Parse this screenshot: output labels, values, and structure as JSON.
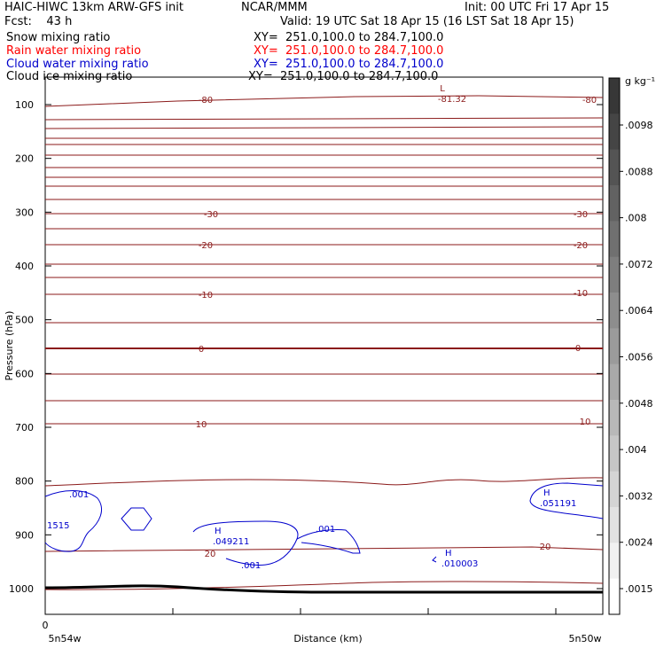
{
  "header": {
    "title": "HAIC-HIWC 13km ARW-GFS init",
    "org": "NCAR/MMM",
    "init": "Init: 00 UTC Fri 17 Apr 15",
    "fcst": "Fcst:    43 h",
    "valid": "Valid: 19 UTC Sat 18 Apr 15 (16 LST Sat 18 Apr 15)"
  },
  "fields": [
    {
      "label": "Snow mixing ratio",
      "xy": "XY=  251.0,100.0 to 284.7,100.0",
      "color": "#000000"
    },
    {
      "label": "Rain water mixing ratio",
      "xy": "XY=  251.0,100.0 to 284.7,100.0",
      "color": "#ff0000"
    },
    {
      "label": "Cloud water mixing ratio",
      "xy": "XY=  251.0,100.0 to 284.7,100.0",
      "color": "#0000cc"
    },
    {
      "label": "Cloud ice mixing ratio",
      "xy": "XY=  251.0,100.0 to 284.7,100.0",
      "color": "#000000"
    }
  ],
  "chart_data": {
    "type": "cross-section",
    "ylabel": "Pressure (hPa)",
    "xlabel": "Distance (km)",
    "yticks": [
      100,
      200,
      300,
      400,
      500,
      600,
      700,
      800,
      900,
      1000
    ],
    "xtick_zero": "0",
    "x_left_label": "5n54w",
    "x_right_label": "5n50w",
    "colorbar_unit": "g kg⁻¹",
    "colorbar_ticks": [
      ".0098",
      ".0088",
      ".008",
      ".0072",
      ".0064",
      ".0056",
      ".0048",
      ".004",
      ".0032",
      ".0024",
      ".0015"
    ],
    "temperature_labels": [
      "-80",
      "-81.32",
      "L",
      "-30",
      "-20",
      "-10",
      "0",
      "10",
      "20"
    ],
    "cloud_water_labels": [
      ".001",
      "1515",
      "H",
      ".049211",
      ".001",
      ".001",
      "H",
      ".010003",
      "H",
      ".051191"
    ],
    "contour_color": "#8b1a1a",
    "cloud_color": "#0000cc"
  }
}
